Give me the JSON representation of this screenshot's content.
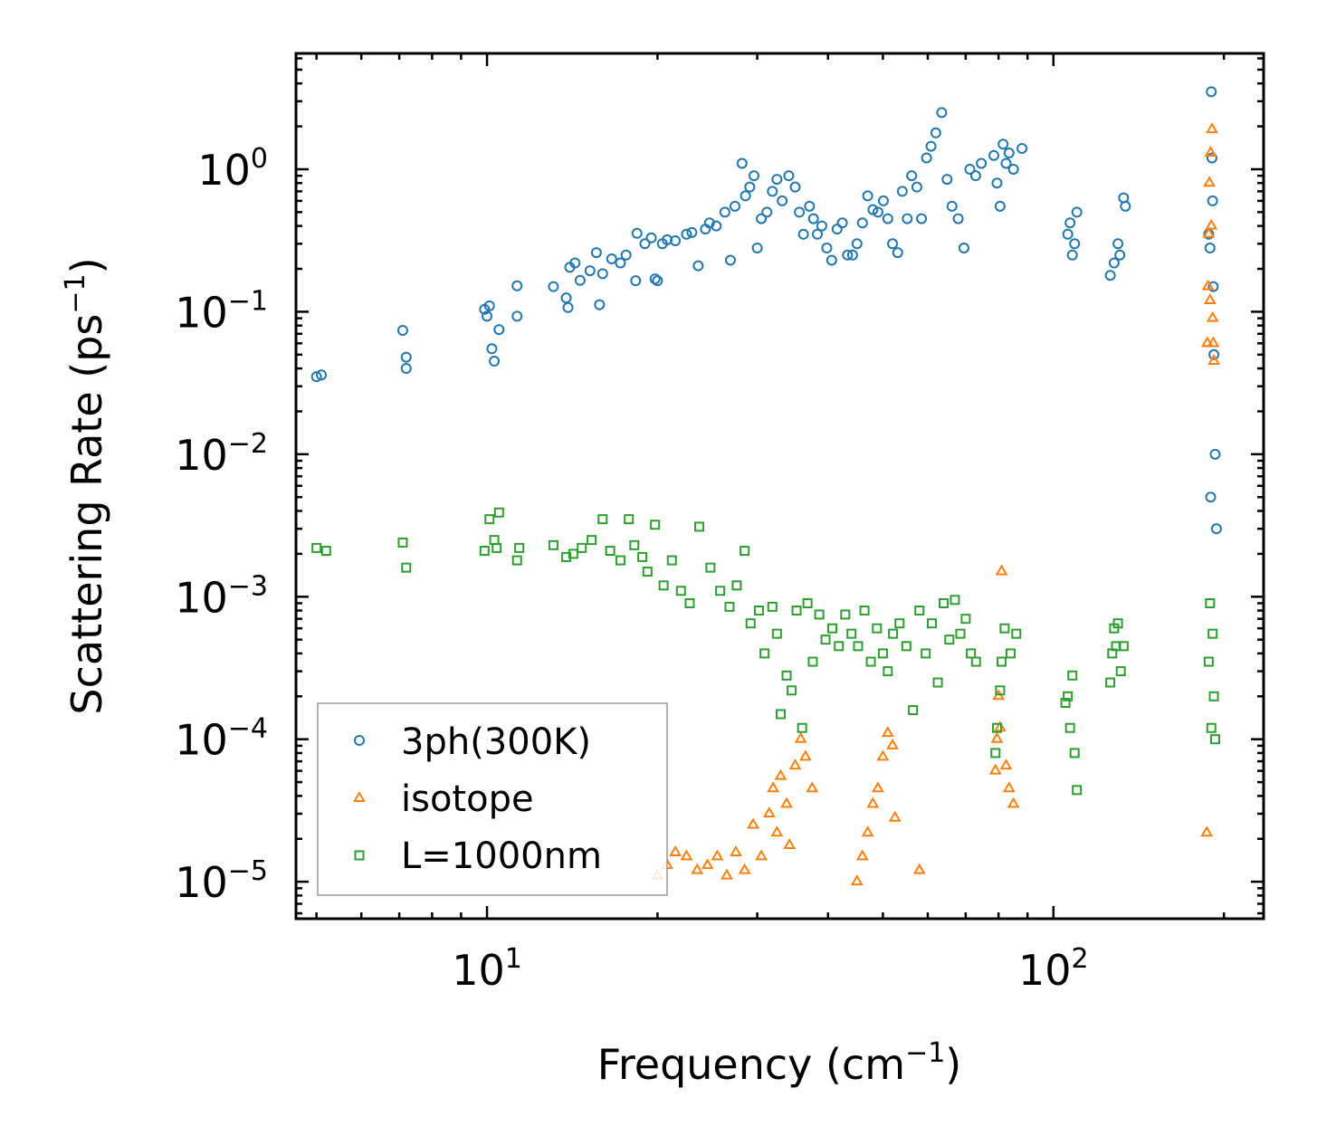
{
  "chart_data": {
    "type": "scatter",
    "title": "",
    "xlabel": "Frequency (cm",
    "xlabel_sup": "−1",
    "xlabel_end": ")",
    "ylabel": "Scattering Rate (ps",
    "ylabel_sup": "−1",
    "ylabel_end": ")",
    "xscale": "log",
    "yscale": "log",
    "xlim": [
      4.6,
      235
    ],
    "ylim": [
      5.5e-06,
      6.5
    ],
    "x_ticks": [
      {
        "value": 10,
        "base": "10",
        "exp": "1"
      },
      {
        "value": 100,
        "base": "10",
        "exp": "2"
      }
    ],
    "y_ticks": [
      {
        "value": 1,
        "base": "10",
        "exp": "0"
      },
      {
        "value": 0.1,
        "base": "10",
        "exp": "−1"
      },
      {
        "value": 0.01,
        "base": "10",
        "exp": "−2"
      },
      {
        "value": 0.001,
        "base": "10",
        "exp": "−3"
      },
      {
        "value": 0.0001,
        "base": "10",
        "exp": "−4"
      },
      {
        "value": 1e-05,
        "base": "10",
        "exp": "−5"
      }
    ],
    "legend_position": "lower-left",
    "series": [
      {
        "name": "3ph(300K)",
        "marker": "circle",
        "color": "#1f77b4",
        "x": [
          5.0,
          5.1,
          7.1,
          7.2,
          7.2,
          9.9,
          10.0,
          10.1,
          10.2,
          10.3,
          10.5,
          11.3,
          11.3,
          13.1,
          13.8,
          13.9,
          14.0,
          14.3,
          14.6,
          15.2,
          15.6,
          15.8,
          16.0,
          16.6,
          17.2,
          17.6,
          18.3,
          18.4,
          19.0,
          19.5,
          19.8,
          20.0,
          20.4,
          20.8,
          21.5,
          22.5,
          23.0,
          23.6,
          24.3,
          24.7,
          25.4,
          26.3,
          26.9,
          27.4,
          28.2,
          28.6,
          29.1,
          29.6,
          30.0,
          30.5,
          31.2,
          31.9,
          32.5,
          33.2,
          34.1,
          35.0,
          35.6,
          36.2,
          37.1,
          37.7,
          38.3,
          39.0,
          39.8,
          40.6,
          41.5,
          42.4,
          43.3,
          44.2,
          45.0,
          46.0,
          47.0,
          48.0,
          49.0,
          50.1,
          51.0,
          52.0,
          53.1,
          54.1,
          55.2,
          56.2,
          57.4,
          58.5,
          59.7,
          60.8,
          62.0,
          63.5,
          64.9,
          66.2,
          67.9,
          69.5,
          71.2,
          72.9,
          74.6,
          78.5,
          79.5,
          80.5,
          81.5,
          82.5,
          83.5,
          85.0,
          88.0,
          106.0,
          107.0,
          108.0,
          109.0,
          110.0,
          126.0,
          128.0,
          130.0,
          131.0,
          133.0,
          134.0,
          188.0,
          189.0,
          189.5,
          190.0,
          190.5,
          191.0,
          191.5,
          192.0,
          193.0,
          194.0
        ],
        "y": [
          0.035,
          0.036,
          0.074,
          0.048,
          0.04,
          0.104,
          0.093,
          0.11,
          0.055,
          0.045,
          0.075,
          0.152,
          0.093,
          0.15,
          0.125,
          0.107,
          0.205,
          0.22,
          0.166,
          0.194,
          0.26,
          0.112,
          0.185,
          0.235,
          0.22,
          0.25,
          0.165,
          0.355,
          0.3,
          0.33,
          0.17,
          0.165,
          0.3,
          0.32,
          0.315,
          0.35,
          0.36,
          0.21,
          0.38,
          0.42,
          0.4,
          0.5,
          0.23,
          0.55,
          1.1,
          0.65,
          0.75,
          0.9,
          0.28,
          0.45,
          0.5,
          0.7,
          0.85,
          0.6,
          0.9,
          0.75,
          0.5,
          0.35,
          0.55,
          0.45,
          0.35,
          0.4,
          0.28,
          0.23,
          0.38,
          0.42,
          0.25,
          0.25,
          0.3,
          0.42,
          0.65,
          0.52,
          0.5,
          0.6,
          0.45,
          0.3,
          0.26,
          0.7,
          0.45,
          0.9,
          0.75,
          0.45,
          1.2,
          1.45,
          1.8,
          2.5,
          0.85,
          0.55,
          0.45,
          0.28,
          1.0,
          0.9,
          1.1,
          1.25,
          0.8,
          0.55,
          1.5,
          1.1,
          1.3,
          1.0,
          1.4,
          0.35,
          0.42,
          0.25,
          0.3,
          0.5,
          0.18,
          0.22,
          0.3,
          0.25,
          0.63,
          0.55,
          0.35,
          0.28,
          0.005,
          3.5,
          1.2,
          0.6,
          0.15,
          0.05,
          0.01,
          0.003
        ]
      },
      {
        "name": "isotope",
        "marker": "triangle",
        "color": "#ff7f0e",
        "x": [
          20.0,
          20.8,
          21.5,
          22.5,
          23.5,
          24.5,
          25.5,
          26.5,
          27.5,
          28.5,
          29.5,
          30.5,
          31.5,
          32.0,
          32.5,
          33.0,
          33.8,
          34.2,
          35.0,
          35.8,
          36.5,
          37.5,
          45.0,
          46.0,
          47.0,
          48.0,
          49.0,
          50.0,
          51.0,
          52.0,
          52.5,
          58.0,
          79.0,
          79.5,
          80.0,
          80.5,
          81.0,
          82.5,
          83.5,
          85.0,
          186.5,
          187.0,
          187.5,
          188.0,
          188.5,
          189.0,
          189.5,
          190.0,
          190.5,
          191.0,
          191.5,
          192.0
        ],
        "y": [
          1.1e-05,
          1.3e-05,
          1.6e-05,
          1.5e-05,
          1.2e-05,
          1.3e-05,
          1.5e-05,
          1.1e-05,
          1.6e-05,
          1.2e-05,
          2.5e-05,
          1.5e-05,
          3e-05,
          4.5e-05,
          2.2e-05,
          5.5e-05,
          3.5e-05,
          1.8e-05,
          6.5e-05,
          0.0001,
          7.5e-05,
          4.5e-05,
          1e-05,
          1.5e-05,
          2.2e-05,
          3.5e-05,
          4.5e-05,
          7.5e-05,
          0.00011,
          9e-05,
          2.8e-05,
          1.2e-05,
          6e-05,
          0.0001,
          0.0002,
          0.00012,
          0.0015,
          6.5e-05,
          4.5e-05,
          3.5e-05,
          2.2e-05,
          0.06,
          0.15,
          0.35,
          0.8,
          0.12,
          1.3,
          0.4,
          1.9,
          0.09,
          0.06,
          0.045
        ]
      },
      {
        "name": "L=1000nm",
        "marker": "square",
        "color": "#2ca02c",
        "x": [
          5.0,
          5.2,
          7.1,
          7.2,
          9.9,
          10.1,
          10.3,
          10.4,
          10.5,
          11.3,
          11.4,
          13.1,
          13.8,
          14.2,
          14.7,
          15.3,
          16.0,
          16.5,
          17.2,
          17.8,
          18.2,
          18.8,
          19.2,
          19.8,
          20.5,
          21.2,
          22.0,
          22.8,
          23.7,
          24.8,
          25.8,
          26.8,
          27.6,
          28.5,
          29.2,
          30.2,
          30.9,
          31.9,
          32.5,
          33.0,
          33.8,
          34.5,
          35.2,
          36.0,
          36.8,
          37.6,
          38.6,
          39.6,
          40.7,
          41.8,
          42.9,
          44.0,
          45.2,
          46.4,
          47.6,
          48.8,
          50.0,
          51.0,
          52.1,
          53.5,
          55.0,
          56.5,
          58.0,
          59.5,
          61.0,
          62.5,
          64.0,
          65.5,
          67.0,
          68.5,
          70.0,
          71.5,
          73.0,
          79.0,
          79.5,
          80.5,
          81.0,
          82.0,
          84.0,
          86.0,
          105.0,
          106.0,
          107.0,
          108.0,
          109.0,
          110.0,
          126.0,
          127.0,
          128.0,
          129.0,
          130.0,
          131.5,
          133.0,
          188.0,
          189.0,
          190.0,
          191.0,
          192.0,
          193.0
        ],
        "y": [
          0.0022,
          0.0021,
          0.0024,
          0.0016,
          0.0021,
          0.0035,
          0.0025,
          0.0022,
          0.0039,
          0.0018,
          0.0022,
          0.0023,
          0.0019,
          0.002,
          0.0022,
          0.0025,
          0.0035,
          0.0021,
          0.0018,
          0.0035,
          0.0023,
          0.0019,
          0.0015,
          0.0032,
          0.0012,
          0.0018,
          0.0011,
          0.0009,
          0.0031,
          0.0016,
          0.0011,
          0.00085,
          0.0012,
          0.0021,
          0.00065,
          0.0008,
          0.0004,
          0.00085,
          0.00055,
          0.00015,
          0.00028,
          0.00022,
          0.0008,
          0.00012,
          0.0009,
          0.00035,
          0.00075,
          0.0005,
          0.0006,
          0.00045,
          0.00075,
          0.00055,
          0.00045,
          0.0008,
          0.00035,
          0.0006,
          0.0004,
          0.0003,
          0.00055,
          0.00065,
          0.00045,
          0.00016,
          0.0008,
          0.0004,
          0.00065,
          0.00025,
          0.0009,
          0.0005,
          0.00095,
          0.00055,
          0.0007,
          0.0004,
          0.00035,
          8e-05,
          0.00012,
          0.00022,
          0.00035,
          0.0006,
          0.0004,
          0.00055,
          0.00018,
          0.0002,
          0.00012,
          0.00028,
          8e-05,
          4.4e-05,
          0.00025,
          0.0004,
          0.0006,
          0.00045,
          0.00065,
          0.0003,
          0.00045,
          0.00035,
          0.0009,
          0.00012,
          0.00055,
          0.0002,
          0.0001
        ]
      }
    ]
  }
}
